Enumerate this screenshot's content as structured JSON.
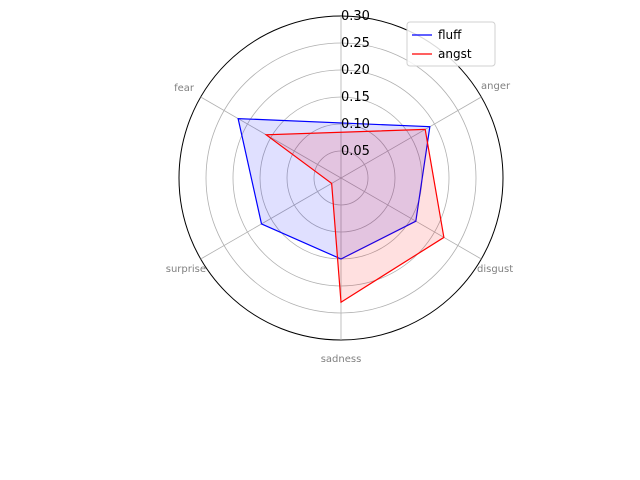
{
  "chart_data": {
    "type": "radar",
    "categories": [
      "anger",
      "disgust",
      "sadness",
      "surprise",
      "fear"
    ],
    "series": [
      {
        "name": "fluff",
        "values": [
          0.19,
          0.16,
          0.15,
          0.17,
          0.22
        ],
        "color": "#0000ff",
        "fill": "#0000ff"
      },
      {
        "name": "angst",
        "values": [
          0.18,
          0.22,
          0.23,
          0.02,
          0.16
        ],
        "color": "#ff0000",
        "fill": "#ff0000"
      }
    ],
    "rlim": [
      0,
      0.3
    ],
    "ticks": [
      "0.05",
      "0.10",
      "0.15",
      "0.20",
      "0.25",
      "0.30"
    ],
    "grid": true,
    "legend": "top-right"
  }
}
